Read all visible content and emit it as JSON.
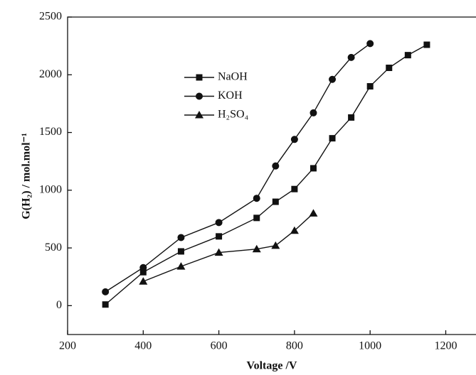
{
  "chart_data": {
    "type": "line",
    "x_label": "Voltage /V",
    "y_label": "G(H₂) / mol.mol⁻¹",
    "xlim": [
      200,
      1280
    ],
    "xticks": [
      200,
      400,
      600,
      800,
      1000,
      1200
    ],
    "ylim": [
      -250,
      2500
    ],
    "yticks": [
      0,
      500,
      1000,
      1500,
      2000,
      2500
    ],
    "series": [
      {
        "name": "NaOH",
        "color": "#111111",
        "marker": "square",
        "x": [
          300,
          400,
          500,
          600,
          700,
          750,
          800,
          850,
          900,
          950,
          1000,
          1050,
          1100,
          1150
        ],
        "values": [
          10,
          290,
          470,
          600,
          760,
          900,
          1010,
          1190,
          1450,
          1630,
          1900,
          2060,
          2170,
          2260
        ]
      },
      {
        "name": "KOH",
        "color": "#111111",
        "marker": "circle",
        "x": [
          300,
          400,
          500,
          600,
          700,
          750,
          800,
          850,
          900,
          950,
          1000
        ],
        "values": [
          120,
          330,
          590,
          720,
          930,
          1210,
          1440,
          1670,
          1960,
          2150,
          2270
        ]
      },
      {
        "name": "H₂SO₄",
        "color": "#111111",
        "marker": "triangle",
        "x": [
          400,
          500,
          600,
          700,
          750,
          800,
          850
        ],
        "values": [
          210,
          340,
          460,
          490,
          520,
          650,
          800
        ]
      }
    ]
  }
}
